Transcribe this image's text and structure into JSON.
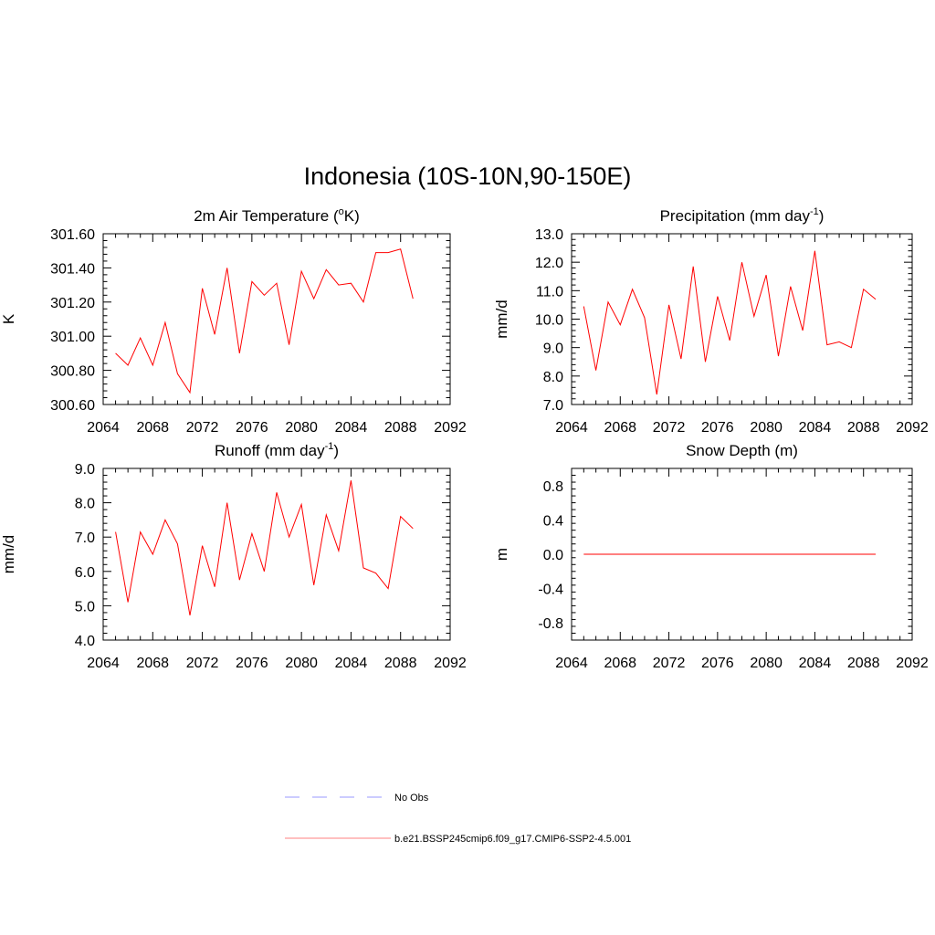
{
  "figure": {
    "title": "Indonesia (10S-10N,90-150E)"
  },
  "legend": {
    "entries": [
      {
        "label": "No Obs",
        "color": "#9999ff",
        "dash": true
      },
      {
        "label": "b.e21.BSSP245cmip6.f09_g17.CMIP6-SSP2-4.5.001",
        "color": "#ff8080",
        "dash": false
      }
    ]
  },
  "colors": {
    "series": "#ff0000"
  },
  "chart_data": [
    {
      "type": "line",
      "title": "2m Air Temperature (°K)",
      "title_parts": [
        "2m Air Temperature (",
        "o",
        "K)"
      ],
      "ylabel": "K",
      "xlim": [
        2064,
        2092
      ],
      "xticks": [
        2064,
        2068,
        2072,
        2076,
        2080,
        2084,
        2088,
        2092
      ],
      "xtick_labels": [
        "2064",
        "2068",
        "2072",
        "2076",
        "2080",
        "2084",
        "2088",
        "2092"
      ],
      "ylim": [
        300.6,
        301.6
      ],
      "yticks": [
        300.6,
        300.8,
        301.0,
        301.2,
        301.4,
        301.6
      ],
      "ytick_labels": [
        "300.60",
        "300.80",
        "301.00",
        "301.20",
        "301.40",
        "301.60"
      ],
      "x": [
        2065,
        2066,
        2067,
        2068,
        2069,
        2070,
        2071,
        2072,
        2073,
        2074,
        2075,
        2076,
        2077,
        2078,
        2079,
        2080,
        2081,
        2082,
        2083,
        2084,
        2085,
        2086,
        2087,
        2088,
        2089
      ],
      "series": [
        {
          "values": [
            300.9,
            300.83,
            300.99,
            300.83,
            301.08,
            300.78,
            300.67,
            301.28,
            301.01,
            301.4,
            300.9,
            301.32,
            301.24,
            301.31,
            300.95,
            301.38,
            301.22,
            301.39,
            301.3,
            301.31,
            301.2,
            301.49,
            301.49,
            301.51,
            301.22
          ]
        }
      ]
    },
    {
      "type": "line",
      "title": "Precipitation (mm day-1)",
      "title_parts": [
        "Precipitation (mm day",
        "-1",
        ")"
      ],
      "ylabel": "mm/d",
      "xlim": [
        2064,
        2092
      ],
      "xticks": [
        2064,
        2068,
        2072,
        2076,
        2080,
        2084,
        2088,
        2092
      ],
      "xtick_labels": [
        "2064",
        "2068",
        "2072",
        "2076",
        "2080",
        "2084",
        "2088",
        "2092"
      ],
      "ylim": [
        7.0,
        13.0
      ],
      "yticks": [
        7,
        8,
        9,
        10,
        11,
        12,
        13
      ],
      "ytick_labels": [
        "7.0",
        "8.0",
        "9.0",
        "10.0",
        "11.0",
        "12.0",
        "13.0"
      ],
      "x": [
        2065,
        2066,
        2067,
        2068,
        2069,
        2070,
        2071,
        2072,
        2073,
        2074,
        2075,
        2076,
        2077,
        2078,
        2079,
        2080,
        2081,
        2082,
        2083,
        2084,
        2085,
        2086,
        2087,
        2088,
        2089
      ],
      "series": [
        {
          "values": [
            10.45,
            8.2,
            10.6,
            9.8,
            11.05,
            10.05,
            7.35,
            10.5,
            8.6,
            11.85,
            8.5,
            10.8,
            9.25,
            12.0,
            10.1,
            11.55,
            8.7,
            11.15,
            9.6,
            12.4,
            9.1,
            9.2,
            9.0,
            11.05,
            10.7
          ]
        }
      ]
    },
    {
      "type": "line",
      "title": "Runoff (mm day-1)",
      "title_parts": [
        "Runoff (mm day",
        "-1",
        ")"
      ],
      "ylabel": "mm/d",
      "xlim": [
        2064,
        2092
      ],
      "xticks": [
        2064,
        2068,
        2072,
        2076,
        2080,
        2084,
        2088,
        2092
      ],
      "xtick_labels": [
        "2064",
        "2068",
        "2072",
        "2076",
        "2080",
        "2084",
        "2088",
        "2092"
      ],
      "ylim": [
        4.0,
        9.0
      ],
      "yticks": [
        4,
        5,
        6,
        7,
        8,
        9
      ],
      "ytick_labels": [
        "4.0",
        "5.0",
        "6.0",
        "7.0",
        "8.0",
        "9.0"
      ],
      "x": [
        2065,
        2066,
        2067,
        2068,
        2069,
        2070,
        2071,
        2072,
        2073,
        2074,
        2075,
        2076,
        2077,
        2078,
        2079,
        2080,
        2081,
        2082,
        2083,
        2084,
        2085,
        2086,
        2087,
        2088,
        2089
      ],
      "series": [
        {
          "values": [
            7.15,
            5.1,
            7.15,
            6.5,
            7.5,
            6.8,
            4.72,
            6.75,
            5.55,
            8.0,
            5.75,
            7.1,
            6.0,
            8.3,
            7.0,
            7.95,
            5.6,
            7.65,
            6.6,
            8.65,
            6.1,
            5.95,
            5.5,
            7.6,
            7.25
          ]
        }
      ]
    },
    {
      "type": "line",
      "title": "Snow Depth (m)",
      "title_parts": [
        "Snow Depth (m)",
        "",
        ""
      ],
      "ylabel": "m",
      "xlim": [
        2064,
        2092
      ],
      "xticks": [
        2064,
        2068,
        2072,
        2076,
        2080,
        2084,
        2088,
        2092
      ],
      "xtick_labels": [
        "2064",
        "2068",
        "2072",
        "2076",
        "2080",
        "2084",
        "2088",
        "2092"
      ],
      "ylim": [
        -1.0,
        1.0
      ],
      "yticks": [
        -0.8,
        -0.4,
        0.0,
        0.4,
        0.8
      ],
      "ytick_labels": [
        "-0.8",
        "-0.4",
        "0.0",
        "0.4",
        "0.8"
      ],
      "x": [
        2065,
        2066,
        2067,
        2068,
        2069,
        2070,
        2071,
        2072,
        2073,
        2074,
        2075,
        2076,
        2077,
        2078,
        2079,
        2080,
        2081,
        2082,
        2083,
        2084,
        2085,
        2086,
        2087,
        2088,
        2089
      ],
      "series": [
        {
          "values": [
            0,
            0,
            0,
            0,
            0,
            0,
            0,
            0,
            0,
            0,
            0,
            0,
            0,
            0,
            0,
            0,
            0,
            0,
            0,
            0,
            0,
            0,
            0,
            0,
            0
          ]
        }
      ]
    }
  ]
}
